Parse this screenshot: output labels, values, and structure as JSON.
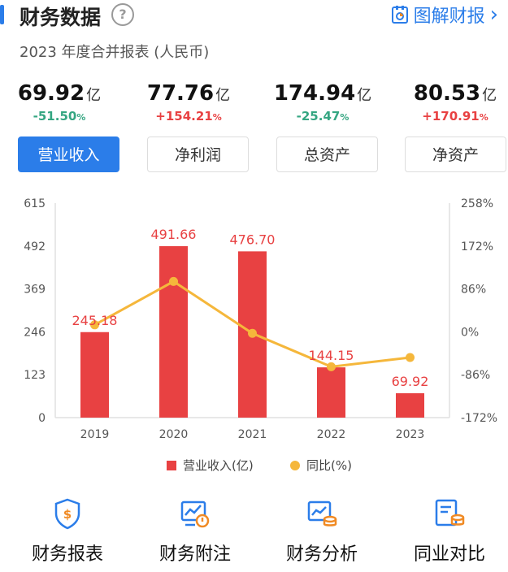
{
  "header": {
    "title": "财务数据",
    "help_symbol": "?",
    "graph_link": "图解财报",
    "graph_chevron": "›"
  },
  "subtitle": "2023 年度合并报表 (人民币)",
  "metrics": [
    {
      "value": "69.92",
      "unit": "亿",
      "change": "-51.50",
      "pct": "%",
      "direction": "down"
    },
    {
      "value": "77.76",
      "unit": "亿",
      "change": "+154.21",
      "pct": "%",
      "direction": "up"
    },
    {
      "value": "174.94",
      "unit": "亿",
      "change": "-25.47",
      "pct": "%",
      "direction": "down"
    },
    {
      "value": "80.53",
      "unit": "亿",
      "change": "+170.91",
      "pct": "%",
      "direction": "up"
    }
  ],
  "tabs": [
    {
      "label": "营业收入",
      "active": true
    },
    {
      "label": "净利润",
      "active": false
    },
    {
      "label": "总资产",
      "active": false
    },
    {
      "label": "净资产",
      "active": false
    }
  ],
  "colors": {
    "accent": "#2b7de9",
    "bar": "#e84142",
    "line": "#f5b73b",
    "down": "#35a682",
    "up": "#e84142"
  },
  "chart_data": {
    "type": "bar",
    "categories": [
      "2019",
      "2020",
      "2021",
      "2022",
      "2023"
    ],
    "series": [
      {
        "name": "营业收入(亿)",
        "type": "bar",
        "values": [
          245.18,
          491.66,
          476.7,
          144.15,
          69.92
        ],
        "labels": [
          "245.18",
          "491.66",
          "476.70",
          "144.15",
          "69.92"
        ]
      },
      {
        "name": "同比(%)",
        "type": "line",
        "values": [
          14,
          101,
          -3,
          -70,
          -51.5
        ]
      }
    ],
    "y_left": {
      "min": 0,
      "max": 615,
      "ticks": [
        "615",
        "492",
        "369",
        "246",
        "123",
        "0"
      ]
    },
    "y_right": {
      "min": -172,
      "max": 258,
      "ticks": [
        "258%",
        "172%",
        "86%",
        "0%",
        "-86%",
        "-172%"
      ]
    },
    "legend_position": "bottom",
    "grid": false
  },
  "bottom_nav": [
    {
      "label": "财务报表",
      "icon": "shield-yuan-icon"
    },
    {
      "label": "财务附注",
      "icon": "chart-screen-icon"
    },
    {
      "label": "财务分析",
      "icon": "chart-coins-icon"
    },
    {
      "label": "同业对比",
      "icon": "compare-coins-icon"
    }
  ]
}
